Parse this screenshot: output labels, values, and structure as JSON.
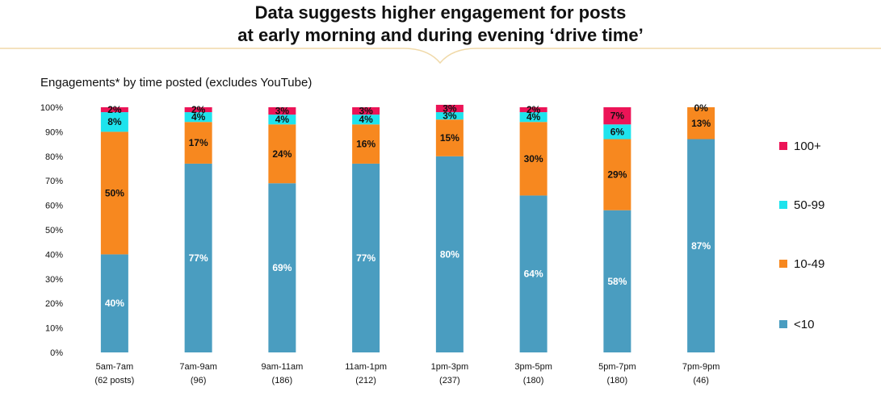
{
  "header": {
    "title_line1": "Data suggests higher engagement for posts",
    "title_line2": "at early morning and during evening ‘drive time’"
  },
  "chart_data": {
    "type": "bar",
    "stacked": true,
    "title": "Engagements* by time posted (excludes YouTube)",
    "categories": [
      "5am-7am",
      "7am-9am",
      "9am-11am",
      "11am-1pm",
      "1pm-3pm",
      "3pm-5pm",
      "5pm-7pm",
      "7pm-9pm"
    ],
    "category_subtitles": [
      "(62 posts)",
      "(96)",
      "(186)",
      "(212)",
      "(237)",
      "(180)",
      "(180)",
      "(46)"
    ],
    "ylim": [
      0,
      100
    ],
    "yticks": [
      "0%",
      "10%",
      "20%",
      "30%",
      "40%",
      "50%",
      "60%",
      "70%",
      "80%",
      "90%",
      "100%"
    ],
    "grid": false,
    "legend_position": "right",
    "series": [
      {
        "name": "<10",
        "color": "#4a9dc0",
        "label_color": "#ffffff",
        "values": [
          40,
          77,
          69,
          77,
          80,
          64,
          58,
          87
        ]
      },
      {
        "name": "10-49",
        "color": "#f7881f",
        "label_color": "#111111",
        "values": [
          50,
          17,
          24,
          16,
          15,
          30,
          29,
          13
        ]
      },
      {
        "name": "50-99",
        "color": "#1ee3ed",
        "label_color": "#111111",
        "values": [
          8,
          4,
          4,
          4,
          3,
          4,
          6,
          0
        ]
      },
      {
        "name": "100+",
        "color": "#ec1457",
        "label_color": "#111111",
        "values": [
          2,
          2,
          3,
          3,
          3,
          2,
          7,
          0
        ]
      }
    ],
    "legend_order": [
      "100+",
      "50-99",
      "10-49",
      "<10"
    ],
    "divider_color": "#f0d9a8"
  }
}
